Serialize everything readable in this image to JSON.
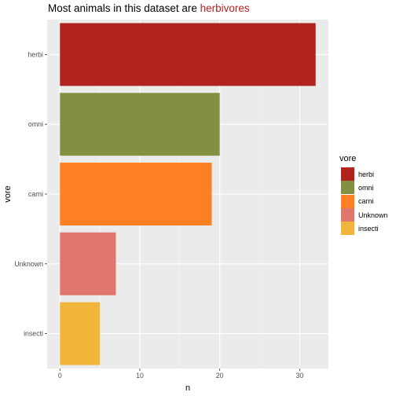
{
  "title": {
    "prefix": "Most animals in this dataset are ",
    "highlight": "herbivores",
    "highlight_color": "#b2221f"
  },
  "legend": {
    "title": "vore",
    "items": [
      {
        "label": "herbi",
        "color": "#b2221f"
      },
      {
        "label": "omni",
        "color": "#848f41"
      },
      {
        "label": "carni",
        "color": "#fe8022"
      },
      {
        "label": "Unknown",
        "color": "#e1776c"
      },
      {
        "label": "insecti",
        "color": "#f2b53b"
      }
    ]
  },
  "chart_data": {
    "type": "bar",
    "orientation": "horizontal",
    "categories": [
      "herbi",
      "omni",
      "carni",
      "Unknown",
      "insecti"
    ],
    "values": [
      32,
      20,
      19,
      7,
      5
    ],
    "colors": [
      "#b2221f",
      "#848f41",
      "#fe8022",
      "#e1776c",
      "#f2b53b"
    ],
    "xlabel": "n",
    "ylabel": "vore",
    "xticks": [
      0,
      10,
      20,
      30
    ],
    "xlim": [
      -1.6,
      33.6
    ],
    "grid": true,
    "legend_position": "right"
  }
}
